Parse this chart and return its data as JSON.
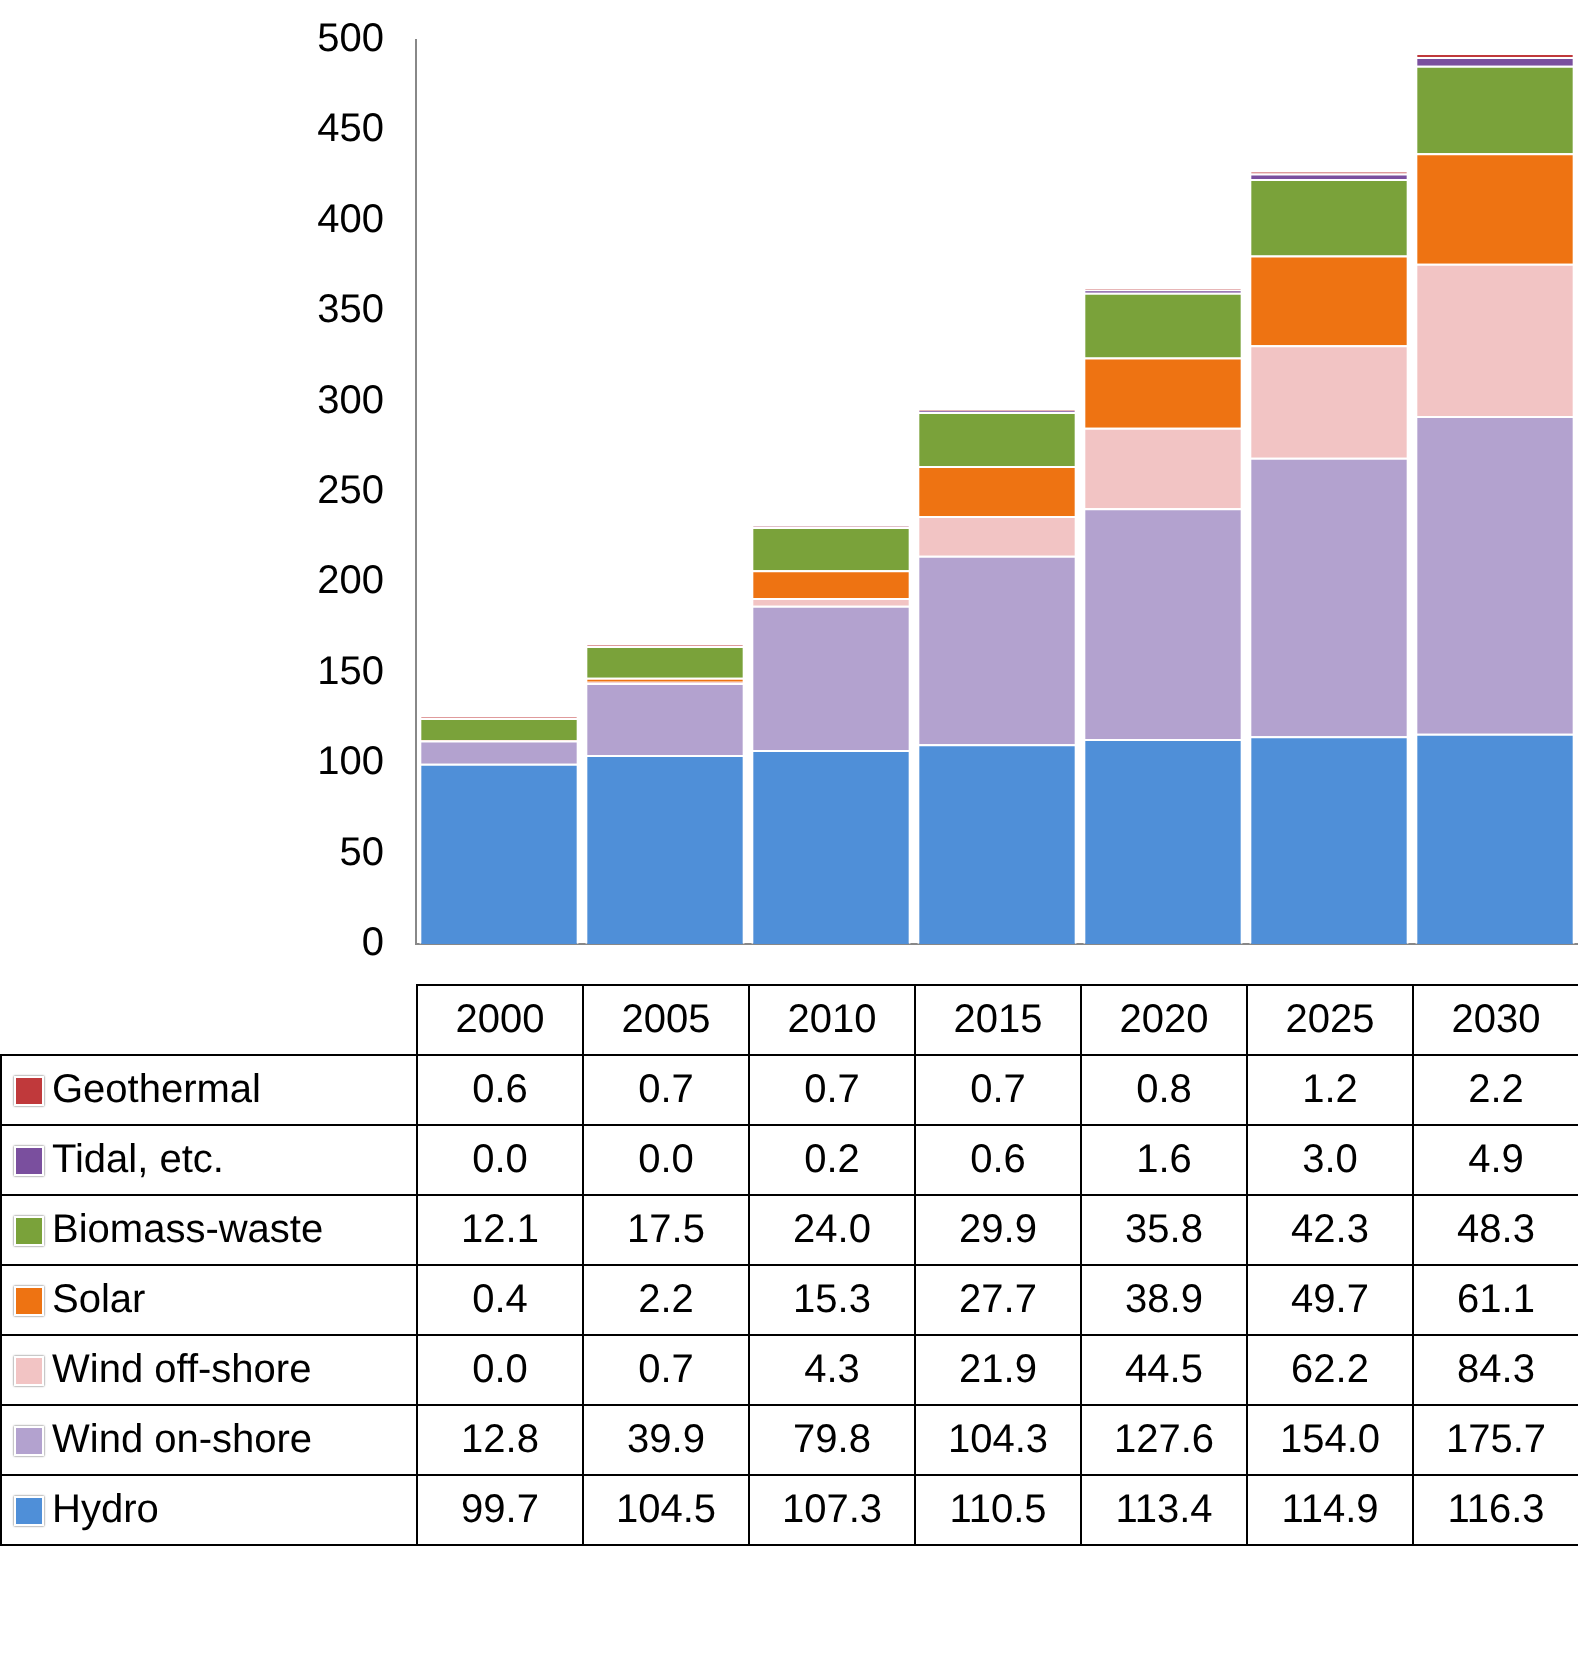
{
  "chart_data": {
    "type": "bar",
    "stacked": true,
    "categories": [
      "2000",
      "2005",
      "2010",
      "2015",
      "2020",
      "2025",
      "2030"
    ],
    "ylim": [
      0,
      500
    ],
    "yticks": [
      0,
      50,
      100,
      150,
      200,
      250,
      300,
      350,
      400,
      450,
      500
    ],
    "grid": false,
    "legend": "bottom",
    "series": [
      {
        "name": "Hydro",
        "color": "#4f8fd8",
        "values": [
          99.7,
          104.5,
          107.3,
          110.5,
          113.4,
          114.9,
          116.3
        ],
        "value_labels": [
          "99.7",
          "104.5",
          "107.3",
          "110.5",
          "113.4",
          "114.9",
          "116.3"
        ]
      },
      {
        "name": "Wind on-shore",
        "color": "#b3a2cf",
        "values": [
          12.8,
          39.9,
          79.8,
          104.3,
          127.6,
          154.0,
          175.7
        ],
        "value_labels": [
          "12.8",
          "39.9",
          "79.8",
          "104.3",
          "127.6",
          "154.0",
          "175.7"
        ]
      },
      {
        "name": "Wind off-shore",
        "color": "#f2c4c4",
        "values": [
          0.0,
          0.7,
          4.3,
          21.9,
          44.5,
          62.2,
          84.3
        ],
        "value_labels": [
          "0.0",
          "0.7",
          "4.3",
          "21.9",
          "44.5",
          "62.2",
          "84.3"
        ]
      },
      {
        "name": "Solar",
        "color": "#ee7312",
        "values": [
          0.4,
          2.2,
          15.3,
          27.7,
          38.9,
          49.7,
          61.1
        ],
        "value_labels": [
          "0.4",
          "2.2",
          "15.3",
          "27.7",
          "38.9",
          "49.7",
          "61.1"
        ]
      },
      {
        "name": "Biomass-waste",
        "color": "#7aa23a",
        "values": [
          12.1,
          17.5,
          24.0,
          29.9,
          35.8,
          42.3,
          48.3
        ],
        "value_labels": [
          "12.1",
          "17.5",
          "24.0",
          "29.9",
          "35.8",
          "42.3",
          "48.3"
        ]
      },
      {
        "name": "Tidal, etc.",
        "color": "#7a4f9e",
        "values": [
          0.0,
          0.0,
          0.2,
          0.6,
          1.6,
          3.0,
          4.9
        ],
        "value_labels": [
          "0.0",
          "0.0",
          "0.2",
          "0.6",
          "1.6",
          "3.0",
          "4.9"
        ]
      },
      {
        "name": "Geothermal",
        "color": "#c0393b",
        "values": [
          0.6,
          0.7,
          0.7,
          0.7,
          0.8,
          1.2,
          2.2
        ],
        "value_labels": [
          "0.6",
          "0.7",
          "0.7",
          "0.7",
          "0.8",
          "1.2",
          "2.2"
        ]
      }
    ]
  }
}
